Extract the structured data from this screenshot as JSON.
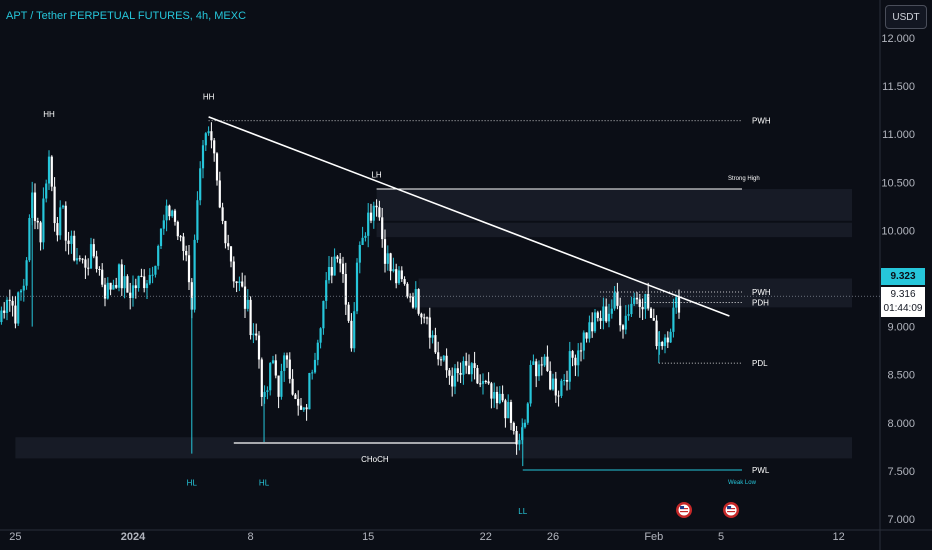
{
  "header": {
    "title": "APT / Tether PERPETUAL FUTURES, 4h, MEXC",
    "currency_button": "USDT"
  },
  "price_tags": {
    "last_price": "9.323",
    "mark_price": "9.316",
    "countdown": "01:44:09"
  },
  "colors": {
    "background": "#0b0e16",
    "up": "#26c6da",
    "down": "#ffffff",
    "title": "#26c6da",
    "zone": "#1a1f2b"
  },
  "chart_data": {
    "type": "candlestick",
    "symbol": "APT/USDT Perpetual",
    "timeframe": "4h",
    "y_axis": {
      "ticks": [
        "12.000",
        "11.500",
        "11.000",
        "10.500",
        "10.000",
        "9.000",
        "8.500",
        "8.000",
        "7.500",
        "7.000"
      ],
      "ylim": [
        7.0,
        12.1
      ],
      "position": "right"
    },
    "x_axis": {
      "tick_labels": [
        "25",
        "2024",
        "8",
        "15",
        "22",
        "26",
        "Feb",
        "5",
        "12"
      ],
      "tick_days": [
        -7,
        0,
        7,
        14,
        21,
        25,
        31,
        35,
        42
      ],
      "x_start": "2023-12-23",
      "x_end": "2024-02-14"
    },
    "levels": [
      {
        "label": "PWH",
        "price": 11.14,
        "style": "dotted",
        "from_day": 4.5
      },
      {
        "label": "Strong High",
        "price": 10.43,
        "style": "solid",
        "from_day": 14.5
      },
      {
        "label": "PWH",
        "price": 9.36,
        "style": "dotted",
        "from_day": 27.8
      },
      {
        "label": "PDH",
        "price": 9.25,
        "style": "dotted",
        "from_day": 30.1
      },
      {
        "label": "PDL",
        "price": 8.62,
        "style": "dotted",
        "from_day": 31.3
      },
      {
        "label": "PWL",
        "price": 7.51,
        "style": "solid",
        "from_day": 23.2
      },
      {
        "label": "Weak Low",
        "price": 7.51,
        "style": "none",
        "from_day": 40.0
      }
    ],
    "trendline": {
      "from": {
        "day": 4.5,
        "price": 11.18
      },
      "to": {
        "day": 35.5,
        "price": 9.11
      }
    },
    "choch_line": {
      "label": "CHoCH",
      "price": 7.79,
      "from_day": 6.0,
      "to_day": 22.8
    },
    "swing_labels": [
      {
        "label": "HH",
        "day": -5.0,
        "price": 11.18,
        "pos": "above"
      },
      {
        "label": "HH",
        "day": 4.5,
        "price": 11.36,
        "pos": "above"
      },
      {
        "label": "LH",
        "day": 14.5,
        "price": 10.55,
        "pos": "above"
      },
      {
        "label": "HL",
        "day": 3.5,
        "price": 7.35,
        "pos": "below"
      },
      {
        "label": "HL",
        "day": 7.8,
        "price": 7.35,
        "pos": "below"
      },
      {
        "label": "LL",
        "day": 23.2,
        "price": 7.05,
        "pos": "below"
      }
    ],
    "zones": [
      {
        "from_day": 14.5,
        "to_day": 42.8,
        "low": 10.1,
        "high": 10.43
      },
      {
        "from_day": 14.5,
        "to_day": 42.8,
        "low": 9.93,
        "high": 10.08
      },
      {
        "from_day": 17.0,
        "to_day": 42.8,
        "low": 9.2,
        "high": 9.5
      },
      {
        "from_day": -7.0,
        "to_day": 42.8,
        "low": 7.63,
        "high": 7.85
      }
    ],
    "events": [
      {
        "day": 32.8,
        "icon": "us-flag"
      },
      {
        "day": 35.6,
        "icon": "us-flag"
      }
    ],
    "series_points": [
      [
        -8.0,
        9.05
      ],
      [
        -7.5,
        9.35
      ],
      [
        -7.0,
        9.15
      ],
      [
        -6.5,
        9.45
      ],
      [
        -6.0,
        10.35
      ],
      [
        -5.5,
        9.95
      ],
      [
        -5.2,
        10.55
      ],
      [
        -5.0,
        10.75
      ],
      [
        -4.6,
        10.05
      ],
      [
        -4.2,
        10.15
      ],
      [
        -3.8,
        9.85
      ],
      [
        -3.0,
        9.65
      ],
      [
        -2.3,
        9.75
      ],
      [
        -1.6,
        9.35
      ],
      [
        -0.9,
        9.55
      ],
      [
        -0.3,
        9.35
      ],
      [
        0.3,
        9.45
      ],
      [
        1.0,
        9.55
      ],
      [
        1.8,
        10.05
      ],
      [
        2.3,
        10.25
      ],
      [
        2.8,
        9.85
      ],
      [
        3.2,
        9.75
      ],
      [
        3.5,
        9.25
      ],
      [
        3.9,
        10.65
      ],
      [
        4.4,
        10.95
      ],
      [
        4.8,
        10.75
      ],
      [
        5.2,
        10.15
      ],
      [
        5.6,
        9.95
      ],
      [
        6.0,
        9.55
      ],
      [
        6.5,
        9.35
      ],
      [
        7.0,
        9.05
      ],
      [
        7.4,
        8.85
      ],
      [
        7.8,
        8.15
      ],
      [
        8.3,
        8.65
      ],
      [
        8.7,
        8.35
      ],
      [
        9.2,
        8.75
      ],
      [
        9.7,
        8.15
      ],
      [
        10.2,
        8.05
      ],
      [
        10.6,
        8.55
      ],
      [
        11.2,
        9.15
      ],
      [
        11.7,
        9.55
      ],
      [
        12.2,
        9.85
      ],
      [
        12.6,
        9.45
      ],
      [
        13.0,
        8.85
      ],
      [
        13.5,
        9.95
      ],
      [
        14.0,
        10.15
      ],
      [
        14.5,
        10.35
      ],
      [
        14.9,
        9.85
      ],
      [
        15.4,
        9.55
      ],
      [
        15.9,
        9.45
      ],
      [
        16.5,
        9.35
      ],
      [
        17.0,
        9.25
      ],
      [
        17.5,
        9.15
      ],
      [
        18.0,
        8.75
      ],
      [
        18.6,
        8.55
      ],
      [
        19.2,
        8.45
      ],
      [
        19.8,
        8.55
      ],
      [
        20.4,
        8.45
      ],
      [
        21.0,
        8.35
      ],
      [
        21.6,
        8.15
      ],
      [
        22.0,
        8.25
      ],
      [
        22.4,
        8.05
      ],
      [
        22.7,
        7.85
      ],
      [
        23.0,
        7.75
      ],
      [
        23.4,
        8.05
      ],
      [
        23.7,
        8.55
      ],
      [
        24.2,
        8.65
      ],
      [
        24.8,
        8.45
      ],
      [
        25.3,
        8.35
      ],
      [
        25.8,
        8.55
      ],
      [
        26.4,
        8.75
      ],
      [
        27.0,
        8.95
      ],
      [
        27.6,
        9.05
      ],
      [
        28.2,
        9.15
      ],
      [
        28.7,
        9.25
      ],
      [
        29.2,
        9.05
      ],
      [
        29.6,
        9.25
      ],
      [
        30.1,
        9.35
      ],
      [
        30.6,
        9.25
      ],
      [
        31.0,
        8.95
      ],
      [
        31.4,
        8.85
      ],
      [
        31.8,
        8.95
      ],
      [
        32.2,
        9.15
      ],
      [
        32.6,
        9.32
      ]
    ],
    "grid": false,
    "legend": "none"
  }
}
